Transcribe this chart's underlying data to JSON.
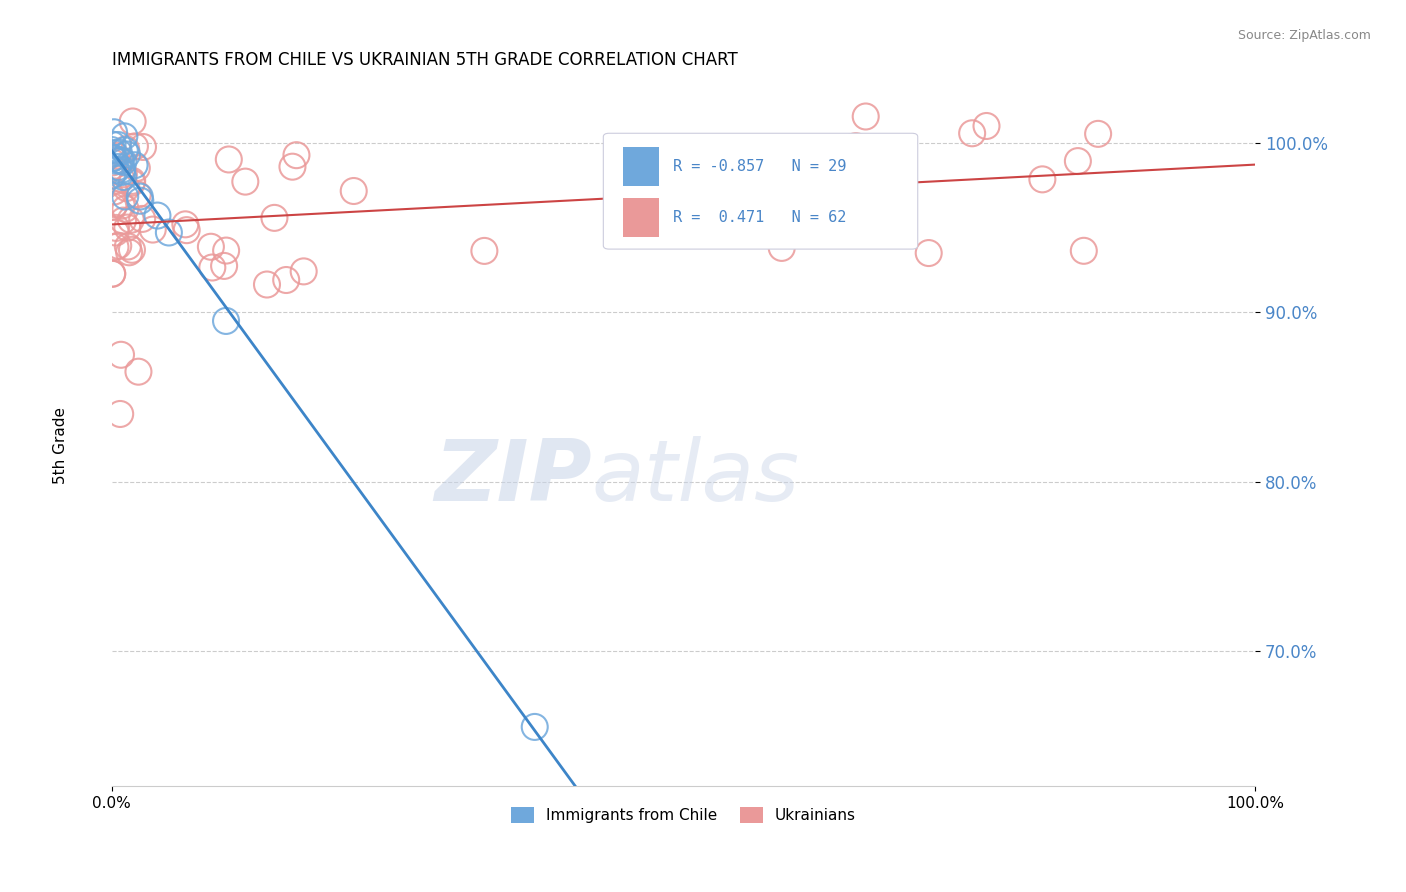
{
  "title": "IMMIGRANTS FROM CHILE VS UKRAINIAN 5TH GRADE CORRELATION CHART",
  "source": "Source: ZipAtlas.com",
  "ylabel": "5th Grade",
  "xlim": [
    0.0,
    1.0
  ],
  "ylim": [
    0.62,
    1.035
  ],
  "chile_R": -0.857,
  "chile_N": 29,
  "ukraine_R": 0.471,
  "ukraine_N": 62,
  "chile_color": "#6fa8dc",
  "ukraine_color": "#ea9999",
  "chile_line_color": "#3d85c8",
  "ukraine_line_color": "#cc4444",
  "background_color": "#ffffff",
  "grid_color": "#cccccc",
  "watermark_zip": "ZIP",
  "watermark_atlas": "atlas",
  "legend_text_color": "#4a86c8",
  "ytick_labels": [
    "100.0%",
    "90.0%",
    "80.0%",
    "70.0%"
  ],
  "ytick_values": [
    1.0,
    0.9,
    0.8,
    0.7
  ],
  "xtick_labels": [
    "0.0%",
    "100.0%"
  ],
  "xtick_values": [
    0.0,
    1.0
  ],
  "chile_seed": 10,
  "ukraine_seed": 20,
  "legend_box_color": "#f0f0f8",
  "legend_border_color": "#ccccdd"
}
